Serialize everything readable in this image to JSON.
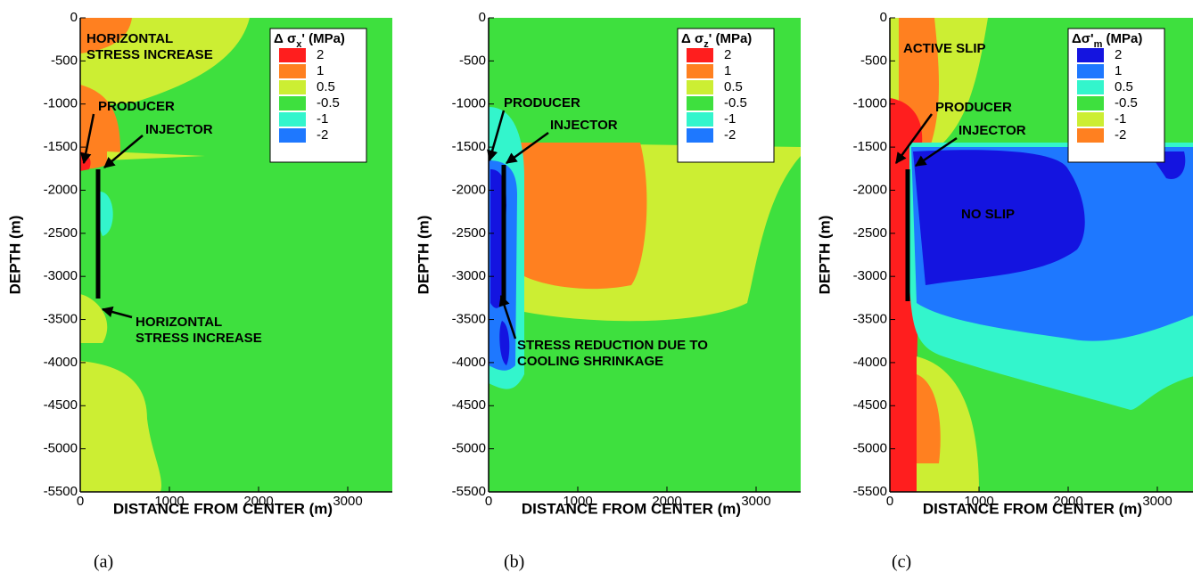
{
  "chart_data": [
    {
      "type": "contour",
      "xlabel": "DISTANCE FROM CENTER (m)",
      "ylabel": "DEPTH (m)",
      "xlim": [
        0,
        3500
      ],
      "ylim": [
        -5500,
        0
      ],
      "xticks": [
        0,
        1000,
        2000,
        3000
      ],
      "yticks": [
        0,
        -500,
        -1000,
        -1500,
        -2000,
        -2500,
        -3000,
        -3500,
        -4000,
        -4500,
        -5000,
        -5500
      ],
      "legend_title": [
        "Δ σ",
        "x",
        "' (MPa)"
      ],
      "levels": [
        2,
        1,
        0.5,
        -0.5,
        -1,
        -2
      ],
      "level_colors": [
        "#ff1e1e",
        "#ff8020",
        "#ccee33",
        "#3ee03e",
        "#33f5cc",
        "#1e78ff"
      ],
      "annotations": [
        [
          "HORIZONTAL",
          "STRESS INCREASE"
        ],
        [
          "PRODUCER"
        ],
        [
          "INJECTOR"
        ],
        [
          "HORIZONTAL",
          "STRESS INCREASE"
        ]
      ],
      "panel_label": "(a)"
    },
    {
      "type": "contour",
      "xlabel": "DISTANCE FROM CENTER (m)",
      "ylabel": "DEPTH (m)",
      "xlim": [
        0,
        3500
      ],
      "ylim": [
        -5500,
        0
      ],
      "xticks": [
        0,
        1000,
        2000,
        3000
      ],
      "yticks": [
        0,
        -500,
        -1000,
        -1500,
        -2000,
        -2500,
        -3000,
        -3500,
        -4000,
        -4500,
        -5000,
        -5500
      ],
      "legend_title": [
        "Δ σ",
        "z",
        "' (MPa)"
      ],
      "levels": [
        2,
        1,
        0.5,
        -0.5,
        -1,
        -2
      ],
      "level_colors": [
        "#ff1e1e",
        "#ff8020",
        "#ccee33",
        "#3ee03e",
        "#33f5cc",
        "#1e78ff"
      ],
      "annotations": [
        [
          "PRODUCER"
        ],
        [
          "INJECTOR"
        ],
        [
          "STRESS REDUCTION DUE TO",
          "COOLING SHRINKAGE"
        ]
      ],
      "panel_label": "(b)"
    },
    {
      "type": "contour",
      "xlabel": "DISTANCE FROM CENTER (m)",
      "ylabel": "DEPTH (m)",
      "xlim": [
        0,
        3500
      ],
      "ylim": [
        -5500,
        0
      ],
      "xticks": [
        0,
        1000,
        2000,
        3000
      ],
      "yticks": [
        0,
        -500,
        -1000,
        -1500,
        -2000,
        -2500,
        -3000,
        -3500,
        -4000,
        -4500,
        -5000,
        -5500
      ],
      "legend_title": [
        "Δσ'",
        "m",
        " (MPa)"
      ],
      "levels": [
        2,
        1,
        0.5,
        -0.5,
        -1,
        -2
      ],
      "level_colors": [
        "#1414e0",
        "#1e78ff",
        "#33f5cc",
        "#3ee03e",
        "#ccee33",
        "#ff8020"
      ],
      "annotations": [
        [
          "ACTIVE SLIP"
        ],
        [
          "PRODUCER"
        ],
        [
          "INJECTOR"
        ],
        [
          "NO SLIP"
        ]
      ],
      "panel_label": "(c)"
    }
  ]
}
